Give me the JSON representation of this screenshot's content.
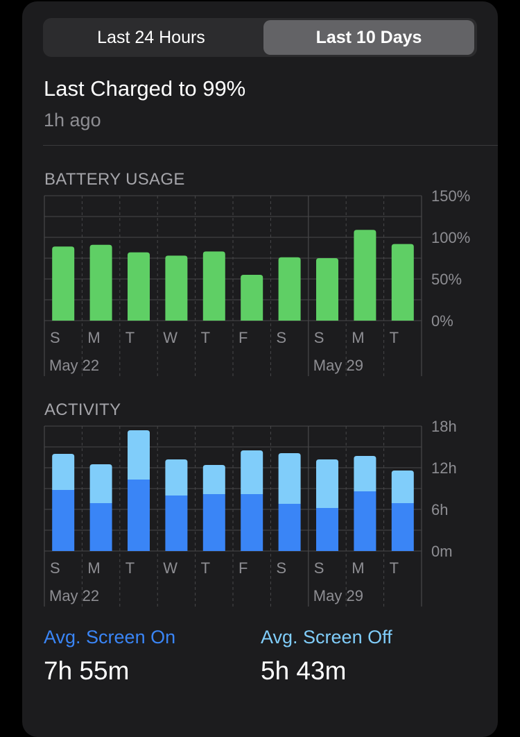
{
  "segmented": {
    "left_label": "Last 24 Hours",
    "right_label": "Last 10 Days",
    "selected": "Last 10 Days"
  },
  "last_charged": {
    "title": "Last Charged to 99%",
    "subtitle": "1h ago"
  },
  "colors": {
    "battery_bar": "#5fcf65",
    "screen_on": "#3a85f6",
    "screen_off": "#80cdfa",
    "grid": "#48484a",
    "axis_text": "#8e8e93"
  },
  "chart_data": [
    {
      "type": "bar",
      "title": "BATTERY USAGE",
      "categories": [
        "S",
        "M",
        "T",
        "W",
        "T",
        "F",
        "S",
        "S",
        "M",
        "T"
      ],
      "week_labels": [
        "May 22",
        "May 29"
      ],
      "values": [
        89,
        91,
        82,
        78,
        83,
        55,
        76,
        75,
        109,
        92
      ],
      "y_ticks": [
        "150%",
        "100%",
        "50%",
        "0%"
      ],
      "ylim": [
        0,
        150
      ]
    },
    {
      "type": "bar",
      "title": "ACTIVITY",
      "categories": [
        "S",
        "M",
        "T",
        "W",
        "T",
        "F",
        "S",
        "S",
        "M",
        "T"
      ],
      "week_labels": [
        "May 22",
        "May 29"
      ],
      "series": [
        {
          "values": [
            8.8,
            6.9,
            10.3,
            8.0,
            8.2,
            8.2,
            6.8,
            6.2,
            8.6,
            6.9
          ]
        },
        {
          "values": [
            5.2,
            5.6,
            7.1,
            5.2,
            4.2,
            6.3,
            7.3,
            7.0,
            5.1,
            4.7
          ]
        }
      ],
      "y_ticks": [
        "18h",
        "12h",
        "6h",
        "0m"
      ],
      "ylim": [
        0,
        18
      ]
    }
  ],
  "stats": {
    "screen_on_label": "Avg. Screen On",
    "screen_on_value": "7h 55m",
    "screen_off_label": "Avg. Screen Off",
    "screen_off_value": "5h 43m"
  }
}
